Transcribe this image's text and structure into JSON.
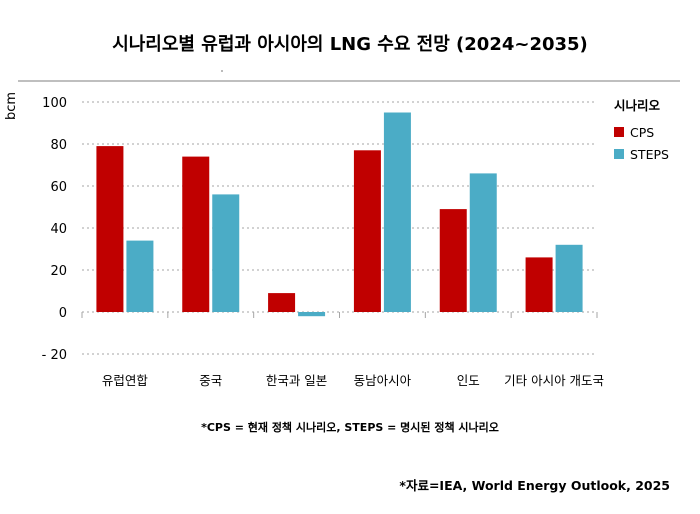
{
  "chart_data": {
    "type": "bar",
    "title": "시나리오별 유럽과 아시아의 LNG 수요 전망  (2024~2035)",
    "ylabel": "bcm",
    "xlabel": "",
    "ylim": [
      -20,
      100
    ],
    "yticks": [
      100,
      80,
      60,
      40,
      20,
      0,
      -20
    ],
    "ytick_labels": [
      "100",
      "80",
      "60",
      "40",
      "20",
      "0",
      "- 20"
    ],
    "grid": true,
    "categories": [
      "유럽연합",
      "중국",
      "한국과 일본",
      "동남아시아",
      "인도",
      "기타 아시아 개도국"
    ],
    "series": [
      {
        "name": "CPS",
        "color": "#c00000",
        "values": [
          79,
          74,
          9,
          77,
          49,
          26
        ]
      },
      {
        "name": "STEPS",
        "color": "#4bacc6",
        "values": [
          34,
          56,
          -2,
          95,
          66,
          32
        ]
      }
    ],
    "legend": {
      "title": "시나리오",
      "placement": "right"
    },
    "footnote": "*CPS = 현재 정책 시나리오,   STEPS = 명시된 정책 시나리오",
    "source": "*자료=IEA, World Energy Outlook, 2025"
  }
}
